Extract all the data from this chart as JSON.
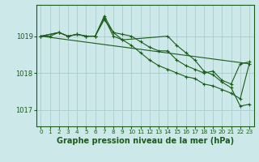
{
  "background_color": "#cce8e8",
  "grid_color": "#aacccc",
  "line_color": "#1a5c1a",
  "marker_color": "#1a5c1a",
  "title": "Graphe pression niveau de la mer (hPa)",
  "title_fontsize": 7,
  "ylabel_ticks": [
    1017,
    1018,
    1019
  ],
  "ylabel_fontsize": 6,
  "xlabel_fontsize": 5.2,
  "xlim": [
    -0.5,
    23.5
  ],
  "ylim": [
    1016.55,
    1019.85
  ],
  "x_ticks": [
    0,
    1,
    2,
    3,
    4,
    5,
    6,
    7,
    8,
    9,
    10,
    11,
    12,
    13,
    14,
    15,
    16,
    17,
    18,
    19,
    20,
    21,
    22,
    23
  ],
  "series": [
    {
      "x": [
        0,
        1,
        2,
        3,
        4,
        5,
        6,
        7,
        8,
        9,
        10,
        11,
        12,
        13,
        14,
        15,
        16,
        17,
        18,
        19,
        20,
        21,
        22,
        23
      ],
      "y": [
        1019.0,
        1019.0,
        1019.1,
        1019.0,
        1019.05,
        1019.0,
        1019.0,
        1019.55,
        1019.1,
        1019.05,
        1019.0,
        1018.85,
        1018.7,
        1018.6,
        1018.6,
        1018.35,
        1018.2,
        1018.1,
        1018.0,
        1018.05,
        1017.8,
        1017.7,
        1018.25,
        1018.3
      ],
      "has_markers": true
    },
    {
      "x": [
        0,
        2,
        3,
        4,
        5,
        6,
        7,
        8,
        9,
        14,
        15,
        16,
        17,
        18,
        19,
        20,
        21,
        22,
        23
      ],
      "y": [
        1019.0,
        1019.1,
        1019.0,
        1019.05,
        1019.0,
        1019.0,
        1019.5,
        1019.0,
        1018.9,
        1019.0,
        1018.75,
        1018.55,
        1018.35,
        1018.05,
        1017.95,
        1017.75,
        1017.6,
        1017.1,
        1017.15
      ],
      "has_markers": true
    },
    {
      "x": [
        0,
        2,
        3,
        4,
        5,
        6,
        7,
        8,
        9,
        10,
        11,
        12,
        13,
        14,
        15,
        16,
        17,
        18,
        19,
        20,
        21,
        22,
        23
      ],
      "y": [
        1019.0,
        1019.1,
        1019.0,
        1019.05,
        1019.0,
        1019.0,
        1019.45,
        1019.1,
        1018.9,
        1018.75,
        1018.55,
        1018.35,
        1018.2,
        1018.1,
        1018.0,
        1017.9,
        1017.85,
        1017.7,
        1017.65,
        1017.55,
        1017.45,
        1017.3,
        1018.25
      ],
      "has_markers": true
    },
    {
      "x": [
        0,
        23
      ],
      "y": [
        1019.0,
        1018.25
      ],
      "has_markers": false
    }
  ]
}
